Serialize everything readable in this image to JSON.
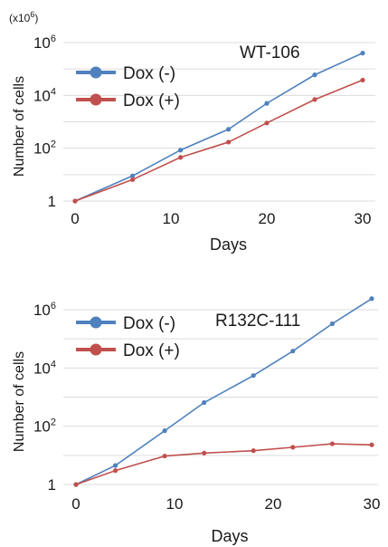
{
  "chart_data": [
    {
      "type": "line",
      "multiplier_label": {
        "base": "(x10",
        "exp": "6",
        "close": ")"
      },
      "title": "WT-106",
      "xlabel": "Days",
      "ylabel": "Number of cells",
      "x_scale": "linear",
      "y_scale": "log",
      "xlim": [
        0,
        31
      ],
      "ylim": [
        1,
        1000000
      ],
      "x_ticks": [
        "0",
        "10",
        "20",
        "30"
      ],
      "y_ticks": [
        {
          "base": "1",
          "exp": ""
        },
        {
          "base": "10",
          "exp": "2"
        },
        {
          "base": "10",
          "exp": "4"
        },
        {
          "base": "10",
          "exp": "6"
        }
      ],
      "legend_position": "top-left",
      "series": [
        {
          "name": "Dox (-)",
          "color": "#4f81bd",
          "points": [
            [
              0,
              1
            ],
            [
              6,
              9
            ],
            [
              11,
              85
            ],
            [
              16,
              520
            ],
            [
              20,
              5000
            ],
            [
              25,
              60000
            ],
            [
              30,
              400000
            ]
          ]
        },
        {
          "name": "Dox (+)",
          "color": "#c0504d",
          "points": [
            [
              0,
              1
            ],
            [
              6,
              6.5
            ],
            [
              11,
              45
            ],
            [
              16,
              170
            ],
            [
              20,
              900
            ],
            [
              25,
              7000
            ],
            [
              30,
              38000
            ]
          ]
        }
      ]
    },
    {
      "type": "line",
      "title": "R132C-111",
      "xlabel": "Days",
      "ylabel": "Number of cells",
      "x_scale": "linear",
      "y_scale": "log",
      "xlim": [
        0,
        31
      ],
      "ylim": [
        1,
        1000000
      ],
      "x_ticks": [
        "0",
        "10",
        "20",
        "30"
      ],
      "y_ticks": [
        {
          "base": "1",
          "exp": ""
        },
        {
          "base": "10",
          "exp": "2"
        },
        {
          "base": "10",
          "exp": "4"
        },
        {
          "base": "10",
          "exp": "6"
        }
      ],
      "legend_position": "top-left",
      "series": [
        {
          "name": "Dox (-)",
          "color": "#4f81bd",
          "points": [
            [
              0,
              1
            ],
            [
              4,
              4.5
            ],
            [
              9,
              70
            ],
            [
              13,
              650
            ],
            [
              18,
              5500
            ],
            [
              22,
              38000
            ],
            [
              26,
              330000
            ],
            [
              30,
              2400000
            ]
          ]
        },
        {
          "name": "Dox (+)",
          "color": "#c0504d",
          "points": [
            [
              0,
              1
            ],
            [
              4,
              3
            ],
            [
              9,
              9.5
            ],
            [
              13,
              12
            ],
            [
              18,
              14.5
            ],
            [
              22,
              19
            ],
            [
              26,
              25
            ],
            [
              30,
              23
            ]
          ]
        }
      ]
    }
  ]
}
